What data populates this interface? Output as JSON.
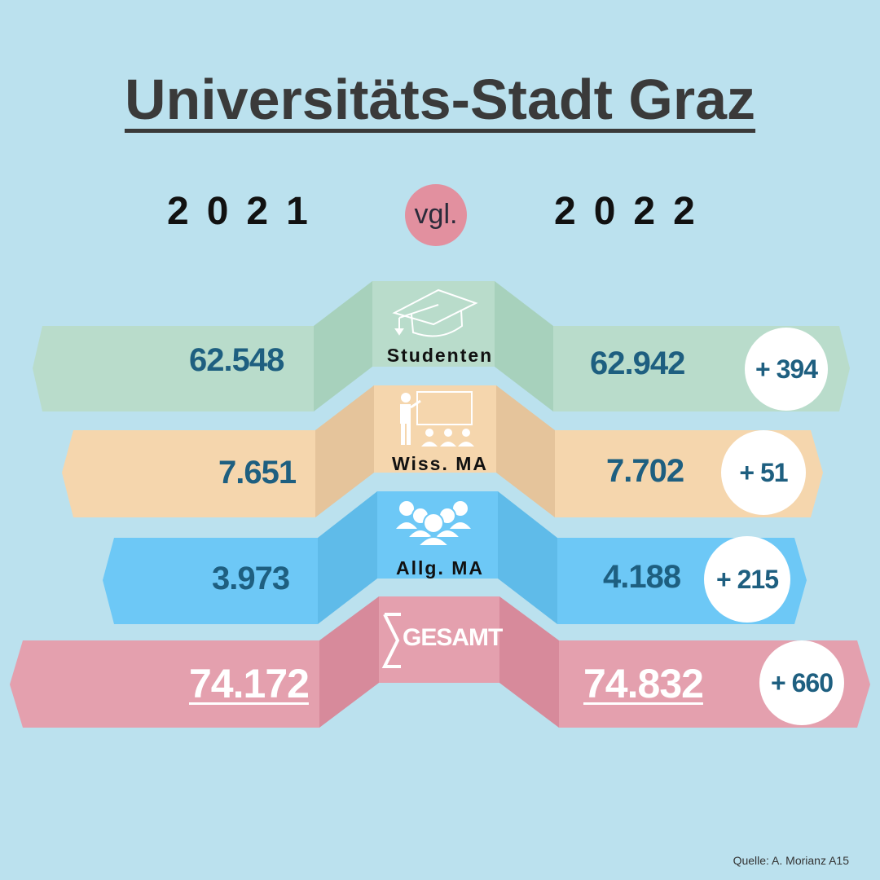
{
  "title": "Universitäts-Stadt Graz",
  "year_left": "2021",
  "year_right": "2022",
  "compare_label": "vgl.",
  "rows": [
    {
      "label": "Studenten",
      "v2021": "62.548",
      "v2022": "62.942",
      "diff": "+ 394",
      "icon": "graduation-cap-icon",
      "color": "#b9dccb"
    },
    {
      "label": "Wiss. MA",
      "v2021": "7.651",
      "v2022": "7.702",
      "diff": "+ 51",
      "icon": "teacher-icon",
      "color": "#f5d6ad"
    },
    {
      "label": "Allg. MA",
      "v2021": "3.973",
      "v2022": "4.188",
      "diff": "+ 215",
      "icon": "group-icon",
      "color": "#6dc8f6"
    },
    {
      "label": "GESAMT",
      "v2021": "74.172",
      "v2022": "74.832",
      "diff": "+ 660",
      "icon": "sigma-icon",
      "color": "#e4a0ae"
    }
  ],
  "source": "Quelle: A. Morianz A15"
}
